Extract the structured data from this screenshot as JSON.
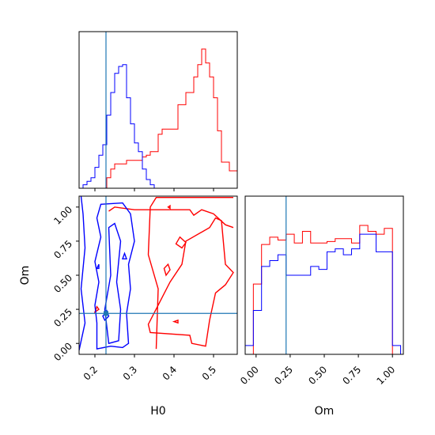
{
  "chart_data": {
    "type": "corner",
    "parameters": [
      "H0",
      "Om"
    ],
    "truth": {
      "H0": 0.228,
      "Om": 0.22
    },
    "series": [
      {
        "color": "#ff0000"
      },
      {
        "color": "#0000ff"
      }
    ],
    "truth_color": "#1f77b4",
    "panels": [
      {
        "id": "h0-hist",
        "type": "histogram",
        "param": "H0",
        "xlim": [
          0.16,
          0.56
        ],
        "x_ticks": [
          0.2,
          0.3,
          0.4,
          0.5
        ],
        "x_tick_labels": [],
        "y_ticks": [],
        "bins": [
          0.16,
          0.17,
          0.18,
          0.19,
          0.2,
          0.21,
          0.22,
          0.23,
          0.24,
          0.25,
          0.26,
          0.27,
          0.28,
          0.29,
          0.3,
          0.31,
          0.32,
          0.33,
          0.34,
          0.35,
          0.36,
          0.37,
          0.38,
          0.39,
          0.4,
          0.41,
          0.42,
          0.43,
          0.44,
          0.45,
          0.46,
          0.47,
          0.48,
          0.49,
          0.5,
          0.51,
          0.52,
          0.53,
          0.54,
          0.55,
          0.56
        ],
        "counts_red": [
          0,
          0,
          0,
          0,
          0,
          0,
          0,
          6,
          11,
          14,
          14,
          14,
          16,
          16,
          16,
          16,
          18,
          19,
          21,
          21,
          31,
          34,
          34,
          34,
          34,
          48,
          48,
          55,
          55,
          64,
          71,
          80,
          72,
          64,
          52,
          33,
          15,
          15,
          10,
          10
        ],
        "counts_blue": [
          0,
          2,
          4,
          6,
          12,
          19,
          25,
          42,
          55,
          66,
          70,
          71,
          52,
          37,
          26,
          21,
          11,
          5,
          2,
          0,
          0,
          0,
          0,
          0,
          0,
          0,
          0,
          0,
          0,
          0,
          0,
          0,
          0,
          0,
          0,
          0,
          0,
          0,
          0,
          0
        ],
        "ylim": [
          0,
          90
        ]
      },
      {
        "id": "om-hist",
        "type": "histogram",
        "param": "Om",
        "xlim": [
          -0.08,
          1.08
        ],
        "x_ticks": [
          0,
          0.25,
          0.5,
          0.75,
          1.0
        ],
        "x_tick_labels": [
          "0.00",
          "0.25",
          "0.50",
          "0.75",
          "1.00"
        ],
        "y_ticks": [],
        "bins": [
          -0.08,
          -0.02,
          0.04,
          0.1,
          0.16,
          0.22,
          0.28,
          0.34,
          0.4,
          0.46,
          0.52,
          0.58,
          0.64,
          0.7,
          0.76,
          0.82,
          0.88,
          0.94,
          1.0,
          1.06
        ],
        "counts_red": [
          0,
          48,
          75,
          80,
          78,
          82,
          76,
          84,
          76,
          76,
          77,
          79,
          79,
          76,
          88,
          84,
          82,
          86,
          0
        ],
        "counts_blue": [
          6,
          30,
          60,
          64,
          68,
          54,
          54,
          54,
          60,
          58,
          70,
          72,
          68,
          72,
          82,
          82,
          70,
          70,
          6
        ],
        "ylim": [
          0,
          108
        ]
      },
      {
        "id": "h0-om-2d",
        "type": "contour",
        "xparam": "H0",
        "yparam": "Om",
        "xlim": [
          0.16,
          0.56
        ],
        "ylim": [
          -0.08,
          1.08
        ],
        "x_ticks": [
          0.2,
          0.3,
          0.4,
          0.5
        ],
        "x_tick_labels": [
          "0.2",
          "0.3",
          "0.4",
          "0.5"
        ],
        "y_ticks": [
          0,
          0.25,
          0.5,
          0.75,
          1.0
        ],
        "y_tick_labels": [
          "0.00",
          "0.25",
          "0.50",
          "0.75",
          "1.00"
        ],
        "xlabel": "H0",
        "ylabel": "Om"
      }
    ],
    "bottom_right_xlabel": "Om"
  }
}
